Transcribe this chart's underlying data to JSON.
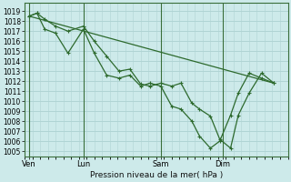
{
  "title": "Pression niveau de la mer( hPa )",
  "bg_color": "#cdeaea",
  "plot_bg": "#cdeaea",
  "grid_color": "#b0d4d4",
  "line_color": "#2d6a2d",
  "ylim_min": 1004.5,
  "ylim_max": 1019.8,
  "yticks": [
    1005,
    1006,
    1007,
    1008,
    1009,
    1010,
    1011,
    1012,
    1013,
    1014,
    1015,
    1016,
    1017,
    1018,
    1019
  ],
  "xtick_labels": [
    "Ven",
    "Lun",
    "Sam",
    "Dim"
  ],
  "xtick_positions": [
    0.0,
    3.5,
    8.5,
    12.5
  ],
  "xlim_min": -0.3,
  "xlim_max": 16.5,
  "vline_positions": [
    0.0,
    3.5,
    8.5,
    12.5
  ],
  "series1_x": [
    0.0,
    0.5,
    1.0,
    1.7,
    2.5,
    3.5,
    4.2,
    5.0,
    5.8,
    6.5,
    7.2,
    7.8,
    8.5,
    9.2,
    9.8,
    10.5,
    11.0,
    11.7,
    12.3,
    13.0,
    13.5,
    14.2,
    15.0,
    15.8
  ],
  "series1_y": [
    1018.5,
    1018.8,
    1018.2,
    1017.5,
    1017.0,
    1017.5,
    1016.0,
    1014.5,
    1013.0,
    1013.2,
    1011.7,
    1011.5,
    1011.8,
    1011.5,
    1011.8,
    1009.8,
    1009.2,
    1008.5,
    1006.2,
    1005.3,
    1008.6,
    1010.8,
    1012.8,
    1011.8
  ],
  "series2_x": [
    0.0,
    0.5,
    1.0,
    1.7,
    2.5,
    3.5,
    4.2,
    5.0,
    5.8,
    6.5,
    7.2,
    7.8,
    8.5,
    9.2,
    9.8,
    10.5,
    11.0,
    11.7,
    12.3,
    13.0,
    13.5,
    14.2,
    15.0,
    15.8
  ],
  "series2_y": [
    1018.5,
    1018.8,
    1017.2,
    1016.8,
    1014.8,
    1017.2,
    1014.8,
    1012.6,
    1012.3,
    1012.6,
    1011.5,
    1011.8,
    1011.5,
    1009.5,
    1009.2,
    1008.0,
    1006.5,
    1005.3,
    1006.0,
    1008.6,
    1010.8,
    1012.8,
    1012.3,
    1011.8
  ],
  "trend_x": [
    0.0,
    15.8
  ],
  "trend_y": [
    1018.5,
    1011.8
  ]
}
